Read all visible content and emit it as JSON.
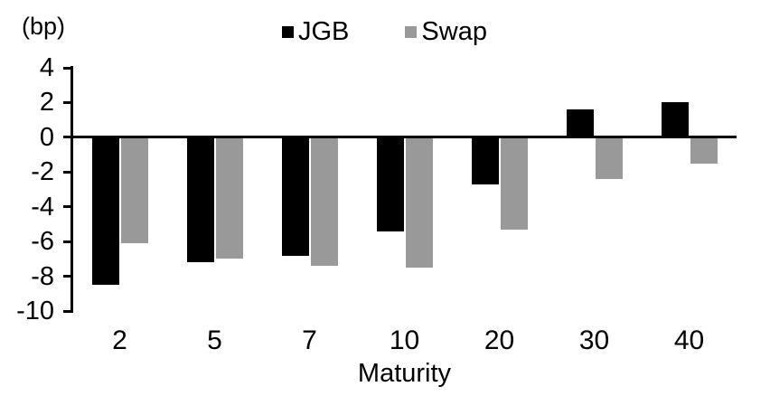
{
  "chart_data": {
    "type": "bar",
    "title": "",
    "unit_label": "(bp)",
    "xlabel": "Maturity",
    "categories": [
      "2",
      "5",
      "7",
      "10",
      "20",
      "30",
      "40"
    ],
    "series": [
      {
        "name": "JGB",
        "color": "#000000",
        "values": [
          -8.5,
          -7.2,
          -6.8,
          -5.4,
          -2.7,
          1.6,
          2.0
        ]
      },
      {
        "name": "Swap",
        "color": "#999999",
        "values": [
          -6.1,
          -7.0,
          -7.4,
          -7.5,
          -5.3,
          -2.4,
          -1.5
        ]
      }
    ],
    "y_axis": {
      "min": -10,
      "max": 4,
      "tick_step": 2,
      "ticks": [
        4,
        2,
        0,
        -2,
        -4,
        -6,
        -8,
        -10
      ]
    },
    "legend_position": "top",
    "grid": false
  }
}
